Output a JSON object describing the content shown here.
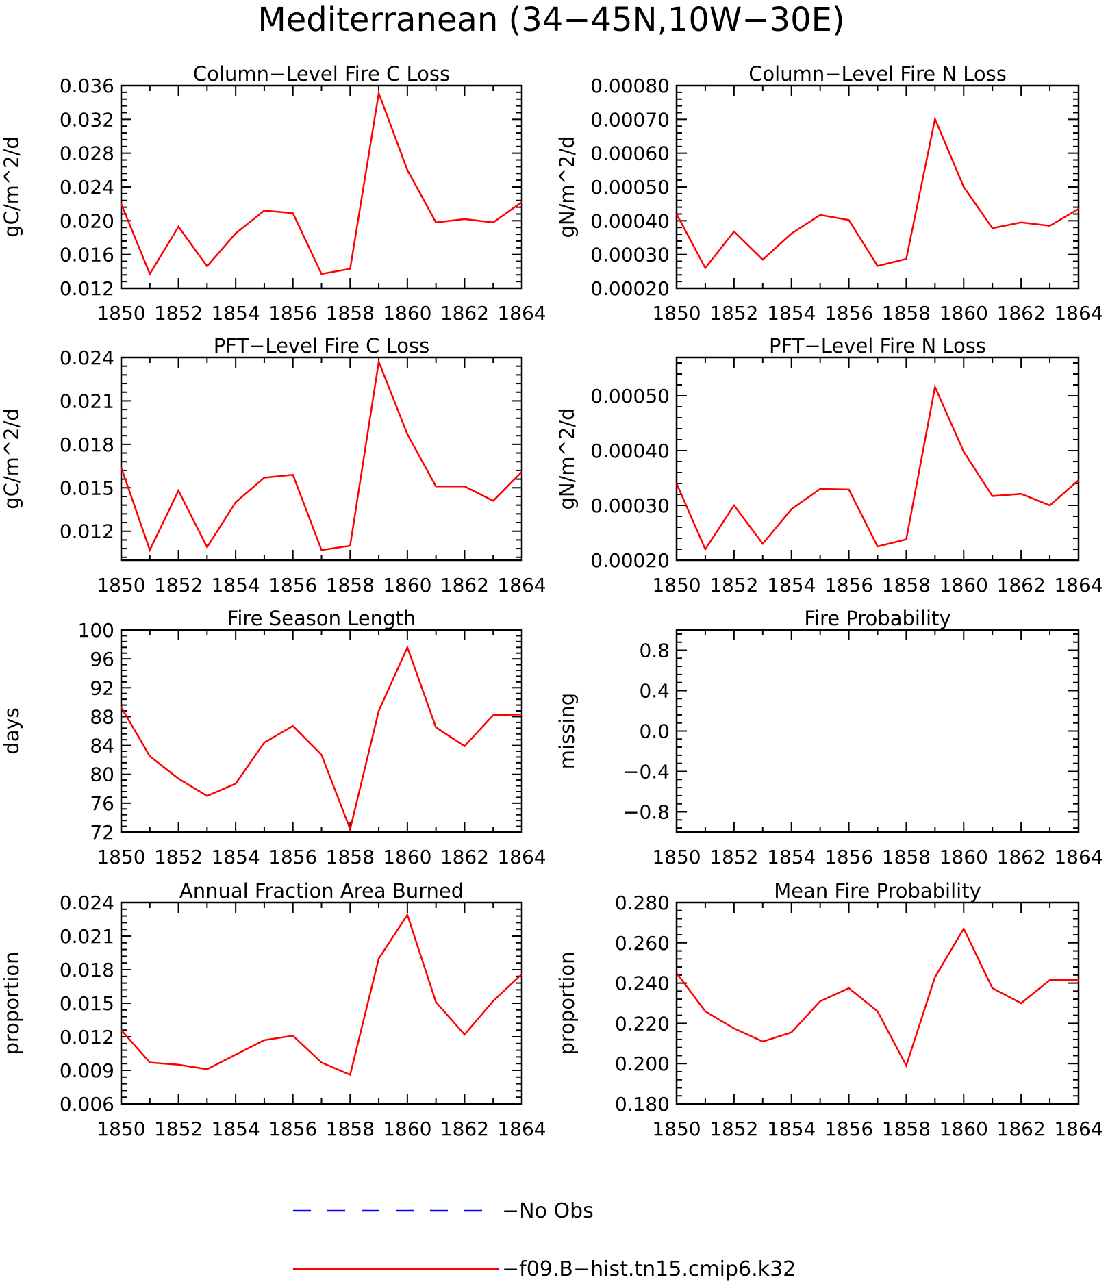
{
  "figure": {
    "title": "Mediterranean (34−45N,10W−30E)"
  },
  "legend": {
    "entries": [
      {
        "label": "No Obs",
        "color": "#0000ff",
        "style": "dashed"
      },
      {
        "label": "f09.B−hist.tn15.cmip6.k32",
        "color": "#ff0000",
        "style": "solid"
      }
    ]
  },
  "chart_data": [
    {
      "type": "line",
      "title": "Column−Level Fire C Loss",
      "ylabel": "gC/m^2/d",
      "xlim": [
        1850,
        1864
      ],
      "ylim": [
        0.012,
        0.036
      ],
      "xticks": [
        "1850",
        "1852",
        "1854",
        "1856",
        "1858",
        "1860",
        "1862",
        "1864"
      ],
      "yticks": [
        "0.012",
        "0.016",
        "0.020",
        "0.024",
        "0.028",
        "0.032",
        "0.036"
      ],
      "x": [
        1850,
        1851,
        1852,
        1853,
        1854,
        1855,
        1856,
        1857,
        1858,
        1859,
        1860,
        1861,
        1862,
        1863,
        1864
      ],
      "series": [
        {
          "color": "#ff0000",
          "values": [
            0.022,
            0.0137,
            0.0193,
            0.0146,
            0.0185,
            0.0212,
            0.0209,
            0.0137,
            0.0143,
            0.0351,
            0.026,
            0.0198,
            0.0202,
            0.0198,
            0.0222
          ]
        }
      ]
    },
    {
      "type": "line",
      "title": "Column−Level Fire N Loss",
      "ylabel": "gN/m^2/d",
      "xlim": [
        1850,
        1864
      ],
      "ylim": [
        0.0002,
        0.0008
      ],
      "xticks": [
        "1850",
        "1852",
        "1854",
        "1856",
        "1858",
        "1860",
        "1862",
        "1864"
      ],
      "yticks": [
        "0.00020",
        "0.00030",
        "0.00040",
        "0.00050",
        "0.00060",
        "0.00070",
        "0.00080"
      ],
      "x": [
        1850,
        1851,
        1852,
        1853,
        1854,
        1855,
        1856,
        1857,
        1858,
        1859,
        1860,
        1861,
        1862,
        1863,
        1864
      ],
      "series": [
        {
          "color": "#ff0000",
          "values": [
            0.00042,
            0.00026,
            0.000368,
            0.000285,
            0.000362,
            0.000417,
            0.000402,
            0.000266,
            0.000287,
            0.000701,
            0.0005,
            0.000378,
            0.000395,
            0.000385,
            0.000435
          ]
        }
      ]
    },
    {
      "type": "line",
      "title": "PFT−Level Fire C Loss",
      "ylabel": "gC/m^2/d",
      "xlim": [
        1850,
        1864
      ],
      "ylim": [
        0.01,
        0.024
      ],
      "xticks": [
        "1850",
        "1852",
        "1854",
        "1856",
        "1858",
        "1860",
        "1862",
        "1864"
      ],
      "yticks": [
        "0.012",
        "0.015",
        "0.018",
        "0.021",
        "0.024"
      ],
      "x": [
        1850,
        1851,
        1852,
        1853,
        1854,
        1855,
        1856,
        1857,
        1858,
        1859,
        1860,
        1861,
        1862,
        1863,
        1864
      ],
      "series": [
        {
          "color": "#ff0000",
          "values": [
            0.0164,
            0.0107,
            0.0148,
            0.0109,
            0.014,
            0.0157,
            0.0159,
            0.0107,
            0.011,
            0.0237,
            0.0187,
            0.0151,
            0.0151,
            0.0141,
            0.0161
          ]
        }
      ]
    },
    {
      "type": "line",
      "title": "PFT−Level Fire N Loss",
      "ylabel": "gN/m^2/d",
      "xlim": [
        1850,
        1864
      ],
      "ylim": [
        0.0002,
        0.00057
      ],
      "xticks": [
        "1850",
        "1852",
        "1854",
        "1856",
        "1858",
        "1860",
        "1862",
        "1864"
      ],
      "yticks": [
        "0.00020",
        "0.00030",
        "0.00040",
        "0.00050"
      ],
      "x": [
        1850,
        1851,
        1852,
        1853,
        1854,
        1855,
        1856,
        1857,
        1858,
        1859,
        1860,
        1861,
        1862,
        1863,
        1864
      ],
      "series": [
        {
          "color": "#ff0000",
          "values": [
            0.00034,
            0.00022,
            0.0003,
            0.00023,
            0.000293,
            0.00033,
            0.000329,
            0.000225,
            0.000238,
            0.000516,
            0.000398,
            0.000317,
            0.000321,
            0.0003,
            0.000346
          ]
        }
      ]
    },
    {
      "type": "line",
      "title": "Fire Season Length",
      "ylabel": "days",
      "xlim": [
        1850,
        1864
      ],
      "ylim": [
        72,
        100
      ],
      "xticks": [
        "1850",
        "1852",
        "1854",
        "1856",
        "1858",
        "1860",
        "1862",
        "1864"
      ],
      "yticks": [
        "72",
        "76",
        "80",
        "84",
        "88",
        "92",
        "96",
        "100"
      ],
      "x": [
        1850,
        1851,
        1852,
        1853,
        1854,
        1855,
        1856,
        1857,
        1858,
        1859,
        1860,
        1861,
        1862,
        1863,
        1864
      ],
      "series": [
        {
          "color": "#ff0000",
          "values": [
            89.3,
            82.5,
            79.4,
            77.0,
            78.7,
            84.4,
            86.7,
            82.7,
            72.4,
            88.8,
            97.6,
            86.5,
            83.9,
            88.2,
            88.3
          ]
        }
      ]
    },
    {
      "type": "line",
      "title": "Fire Probability",
      "ylabel": "missing",
      "xlim": [
        1850,
        1864
      ],
      "ylim": [
        -1,
        1
      ],
      "xticks": [
        "1850",
        "1852",
        "1854",
        "1856",
        "1858",
        "1860",
        "1862",
        "1864"
      ],
      "yticks": [
        "−0.8",
        "−0.4",
        "0.0",
        "0.4",
        "0.8"
      ],
      "x": [],
      "series": []
    },
    {
      "type": "line",
      "title": "Annual Fraction Area Burned",
      "ylabel": "proportion",
      "xlim": [
        1850,
        1864
      ],
      "ylim": [
        0.006,
        0.024
      ],
      "xticks": [
        "1850",
        "1852",
        "1854",
        "1856",
        "1858",
        "1860",
        "1862",
        "1864"
      ],
      "yticks": [
        "0.006",
        "0.009",
        "0.012",
        "0.015",
        "0.018",
        "0.021",
        "0.024"
      ],
      "x": [
        1850,
        1851,
        1852,
        1853,
        1854,
        1855,
        1856,
        1857,
        1858,
        1859,
        1860,
        1861,
        1862,
        1863,
        1864
      ],
      "series": [
        {
          "color": "#ff0000",
          "values": [
            0.0126,
            0.0097,
            0.0095,
            0.0091,
            0.0104,
            0.0117,
            0.0121,
            0.0097,
            0.0086,
            0.019,
            0.0229,
            0.0151,
            0.0122,
            0.0152,
            0.0176
          ]
        }
      ]
    },
    {
      "type": "line",
      "title": "Mean Fire Probability",
      "ylabel": "proportion",
      "xlim": [
        1850,
        1864
      ],
      "ylim": [
        0.18,
        0.28
      ],
      "xticks": [
        "1850",
        "1852",
        "1854",
        "1856",
        "1858",
        "1860",
        "1862",
        "1864"
      ],
      "yticks": [
        "0.180",
        "0.200",
        "0.220",
        "0.240",
        "0.260",
        "0.280"
      ],
      "x": [
        1850,
        1851,
        1852,
        1853,
        1854,
        1855,
        1856,
        1857,
        1858,
        1859,
        1860,
        1861,
        1862,
        1863,
        1864
      ],
      "series": [
        {
          "color": "#ff0000",
          "values": [
            0.245,
            0.226,
            0.2175,
            0.211,
            0.2155,
            0.231,
            0.2375,
            0.226,
            0.199,
            0.243,
            0.267,
            0.2375,
            0.23,
            0.2415,
            0.2415
          ]
        }
      ]
    }
  ]
}
